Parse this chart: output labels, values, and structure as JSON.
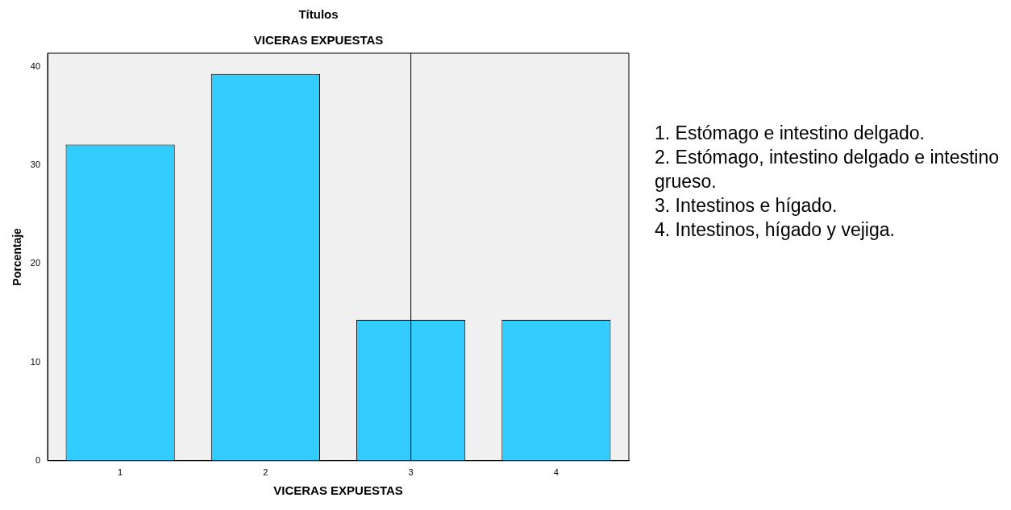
{
  "chart_data": {
    "type": "bar",
    "title": "Títulos",
    "subtitle": "VICERAS EXPUESTAS",
    "xlabel": "VICERAS EXPUESTAS",
    "ylabel": "Porcentaje",
    "categories": [
      "1",
      "2",
      "3",
      "4"
    ],
    "values": [
      32.1,
      39.3,
      14.3,
      14.3
    ],
    "color": "#33ccff",
    "ylim": [
      0,
      41.4
    ],
    "yticks": [
      0,
      10,
      20,
      30,
      40
    ],
    "grid": false,
    "legend": false,
    "ref_lines": [
      {
        "axis": "x",
        "value": "3",
        "color": "#000000"
      }
    ],
    "annotations": [
      "1. Estómago e intestino delgado.",
      "2. Estómago, intestino delgado e intestino grueso.",
      "3. Intestinos e hígado.",
      "4. Intestinos, hígado y vejiga."
    ]
  }
}
